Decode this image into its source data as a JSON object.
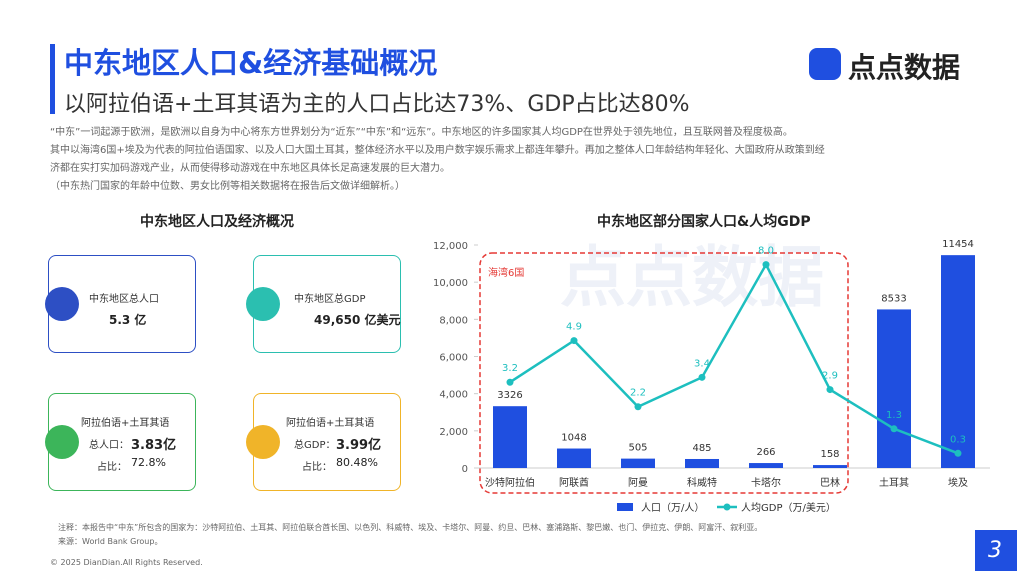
{
  "header": {
    "title": "中东地区人口&经济基础概况",
    "subtitle": "以阿拉伯语+土耳其语为主的人口占比达73%、GDP占比达80%",
    "logo": "点点数据"
  },
  "intro": [
    "“中东”一词起源于欧洲，是欧洲以自身为中心将东方世界划分为“近东”“中东”和“远东”。中东地区的许多国家其人均GDP在世界处于领先地位，且互联网普及程度极高。",
    "其中以海湾6国+埃及为代表的阿拉伯语国家、以及人口大国土耳其，整体经济水平以及用户数字娱乐需求上都连年攀升。再加之整体人口年龄结构年轻化、大国政府从政策到经",
    "济都在实打实加码游戏产业，从而使得移动游戏在中东地区具体长足高速发展的巨大潜力。",
    "（中东热门国家的年龄中位数、男女比例等相关数据将在报告后文做详细解析。）"
  ],
  "overview": {
    "title": "中东地区人口及经济概况",
    "cards": [
      {
        "label": "中东地区总人口",
        "value": "5.3 亿"
      },
      {
        "label": "中东地区总GDP",
        "value": "49,650 亿美元"
      },
      {
        "label": "阿拉伯语+土耳其语",
        "lines": [
          [
            "总人口：",
            "3.83亿"
          ],
          [
            "占比：",
            "72.8%"
          ]
        ]
      },
      {
        "label": "阿拉伯语+土耳其语",
        "lines": [
          [
            "总GDP：",
            "3.99亿"
          ],
          [
            "占比：",
            "80.48%"
          ]
        ]
      }
    ]
  },
  "chart_data": {
    "type": "bar",
    "title": "中东地区部分国家人口&人均GDP",
    "annotation": "海湾6国",
    "legend": "bottom",
    "categories": [
      "沙特阿拉伯",
      "阿联酋",
      "阿曼",
      "科威特",
      "卡塔尔",
      "巴林",
      "土耳其",
      "埃及"
    ],
    "series": [
      {
        "name": "人口（万/人）",
        "color": "#1f4fe0",
        "values": [
          3326,
          1048,
          505,
          485,
          266,
          158,
          8533,
          11454
        ]
      },
      {
        "name": "人均GDP（万/美元）",
        "type": "line",
        "axis": "y2",
        "color": "#1dbfbf",
        "values": [
          3.2,
          4.9,
          2.2,
          3.4,
          8.0,
          2.9,
          1.3,
          0.3
        ],
        "value_labels": [
          "3.2",
          "4.9",
          "2.2",
          "3.4",
          "8.0",
          "2.9",
          "1.3",
          "0.3"
        ]
      }
    ],
    "ylim": [
      0,
      12000
    ],
    "yticks": [
      0,
      {
        "value": 2000,
        "label": "2,000"
      },
      {
        "value": 4000,
        "label": "4,000"
      },
      {
        "value": 6000,
        "label": "6,000"
      },
      {
        "value": 8000,
        "label": "8,000"
      },
      {
        "value": 10000,
        "label": "10,000"
      },
      {
        "value": 12000,
        "label": "12,000"
      }
    ],
    "y2lim": [
      -0.3,
      8.8
    ]
  },
  "footer": {
    "note": "注释：本报告中“中东”所包含的国家为：沙特阿拉伯、土耳其、阿拉伯联合酋长国、以色列、科威特、埃及、卡塔尔、阿曼、约旦、巴林、塞浦路斯、黎巴嫩、也门、伊拉克、伊朗、阿富汗、叙利亚。",
    "source": "来源：World Bank Group。",
    "copyright": "© 2025 DianDian.All Rights Reserved.",
    "page": "3"
  }
}
